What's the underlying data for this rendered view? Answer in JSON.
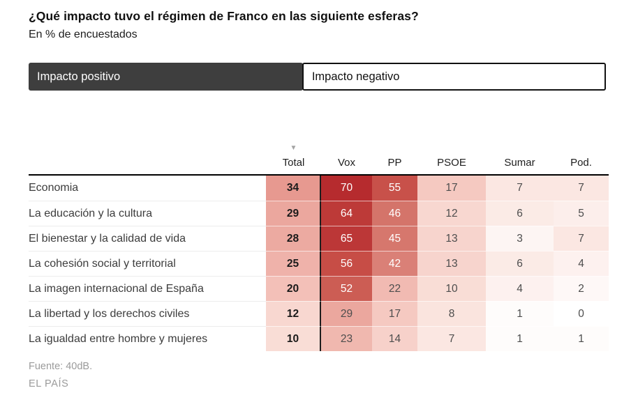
{
  "tabs": [
    {
      "label": "Impacto positivo",
      "selected": true
    },
    {
      "label": "Impacto negativo",
      "selected": false
    }
  ],
  "chart_data": {
    "type": "heatmap",
    "title": "¿Qué impacto tuvo el régimen de Franco en las siguiente esferas?",
    "subtitle": "En % de encuestados",
    "unit": "% de encuestados",
    "columns": [
      "Total",
      "Vox",
      "PP",
      "PSOE",
      "Sumar",
      "Pod."
    ],
    "rows": [
      {
        "label": "Economia",
        "values": [
          34,
          70,
          55,
          17,
          7,
          7
        ]
      },
      {
        "label": "La educación y la cultura",
        "values": [
          29,
          64,
          46,
          12,
          6,
          5
        ]
      },
      {
        "label": "El bienestar y la calidad de vida",
        "values": [
          28,
          65,
          45,
          13,
          3,
          7
        ]
      },
      {
        "label": "La cohesión social y territorial",
        "values": [
          25,
          56,
          42,
          13,
          6,
          4
        ]
      },
      {
        "label": "La imagen internacional de España",
        "values": [
          20,
          52,
          22,
          10,
          4,
          2
        ]
      },
      {
        "label": "La libertad y los derechos civiles",
        "values": [
          12,
          29,
          17,
          8,
          1,
          0
        ]
      },
      {
        "label": "La igualdad entre hombre y mujeres",
        "values": [
          10,
          23,
          14,
          7,
          1,
          1
        ]
      }
    ],
    "value_range": [
      0,
      70
    ],
    "sorted_by_column": "Total",
    "sort_direction": "desc",
    "color_scale": {
      "stops": [
        [
          0,
          "#ffffff"
        ],
        [
          10,
          "#f9ddd6"
        ],
        [
          20,
          "#f3c0b8"
        ],
        [
          34,
          "#e79990"
        ],
        [
          46,
          "#d4746a"
        ],
        [
          56,
          "#c74d46"
        ],
        [
          70,
          "#b62b2e"
        ]
      ],
      "white_text_threshold": 40
    },
    "legend_position": "none",
    "grid": false
  },
  "icons": {
    "sort_indicator": "▼"
  },
  "colors": {
    "tab_active_bg": "#3e3e3e",
    "tab_active_text": "#ffffff",
    "tab_inactive_border": "#111111",
    "heatmap_max": "#b62b2e",
    "table_top_border": "#000000",
    "muted_text": "#9b9b9b"
  },
  "footer": {
    "source": "Fuente: 40dB.",
    "credit": "EL PAÍS"
  }
}
